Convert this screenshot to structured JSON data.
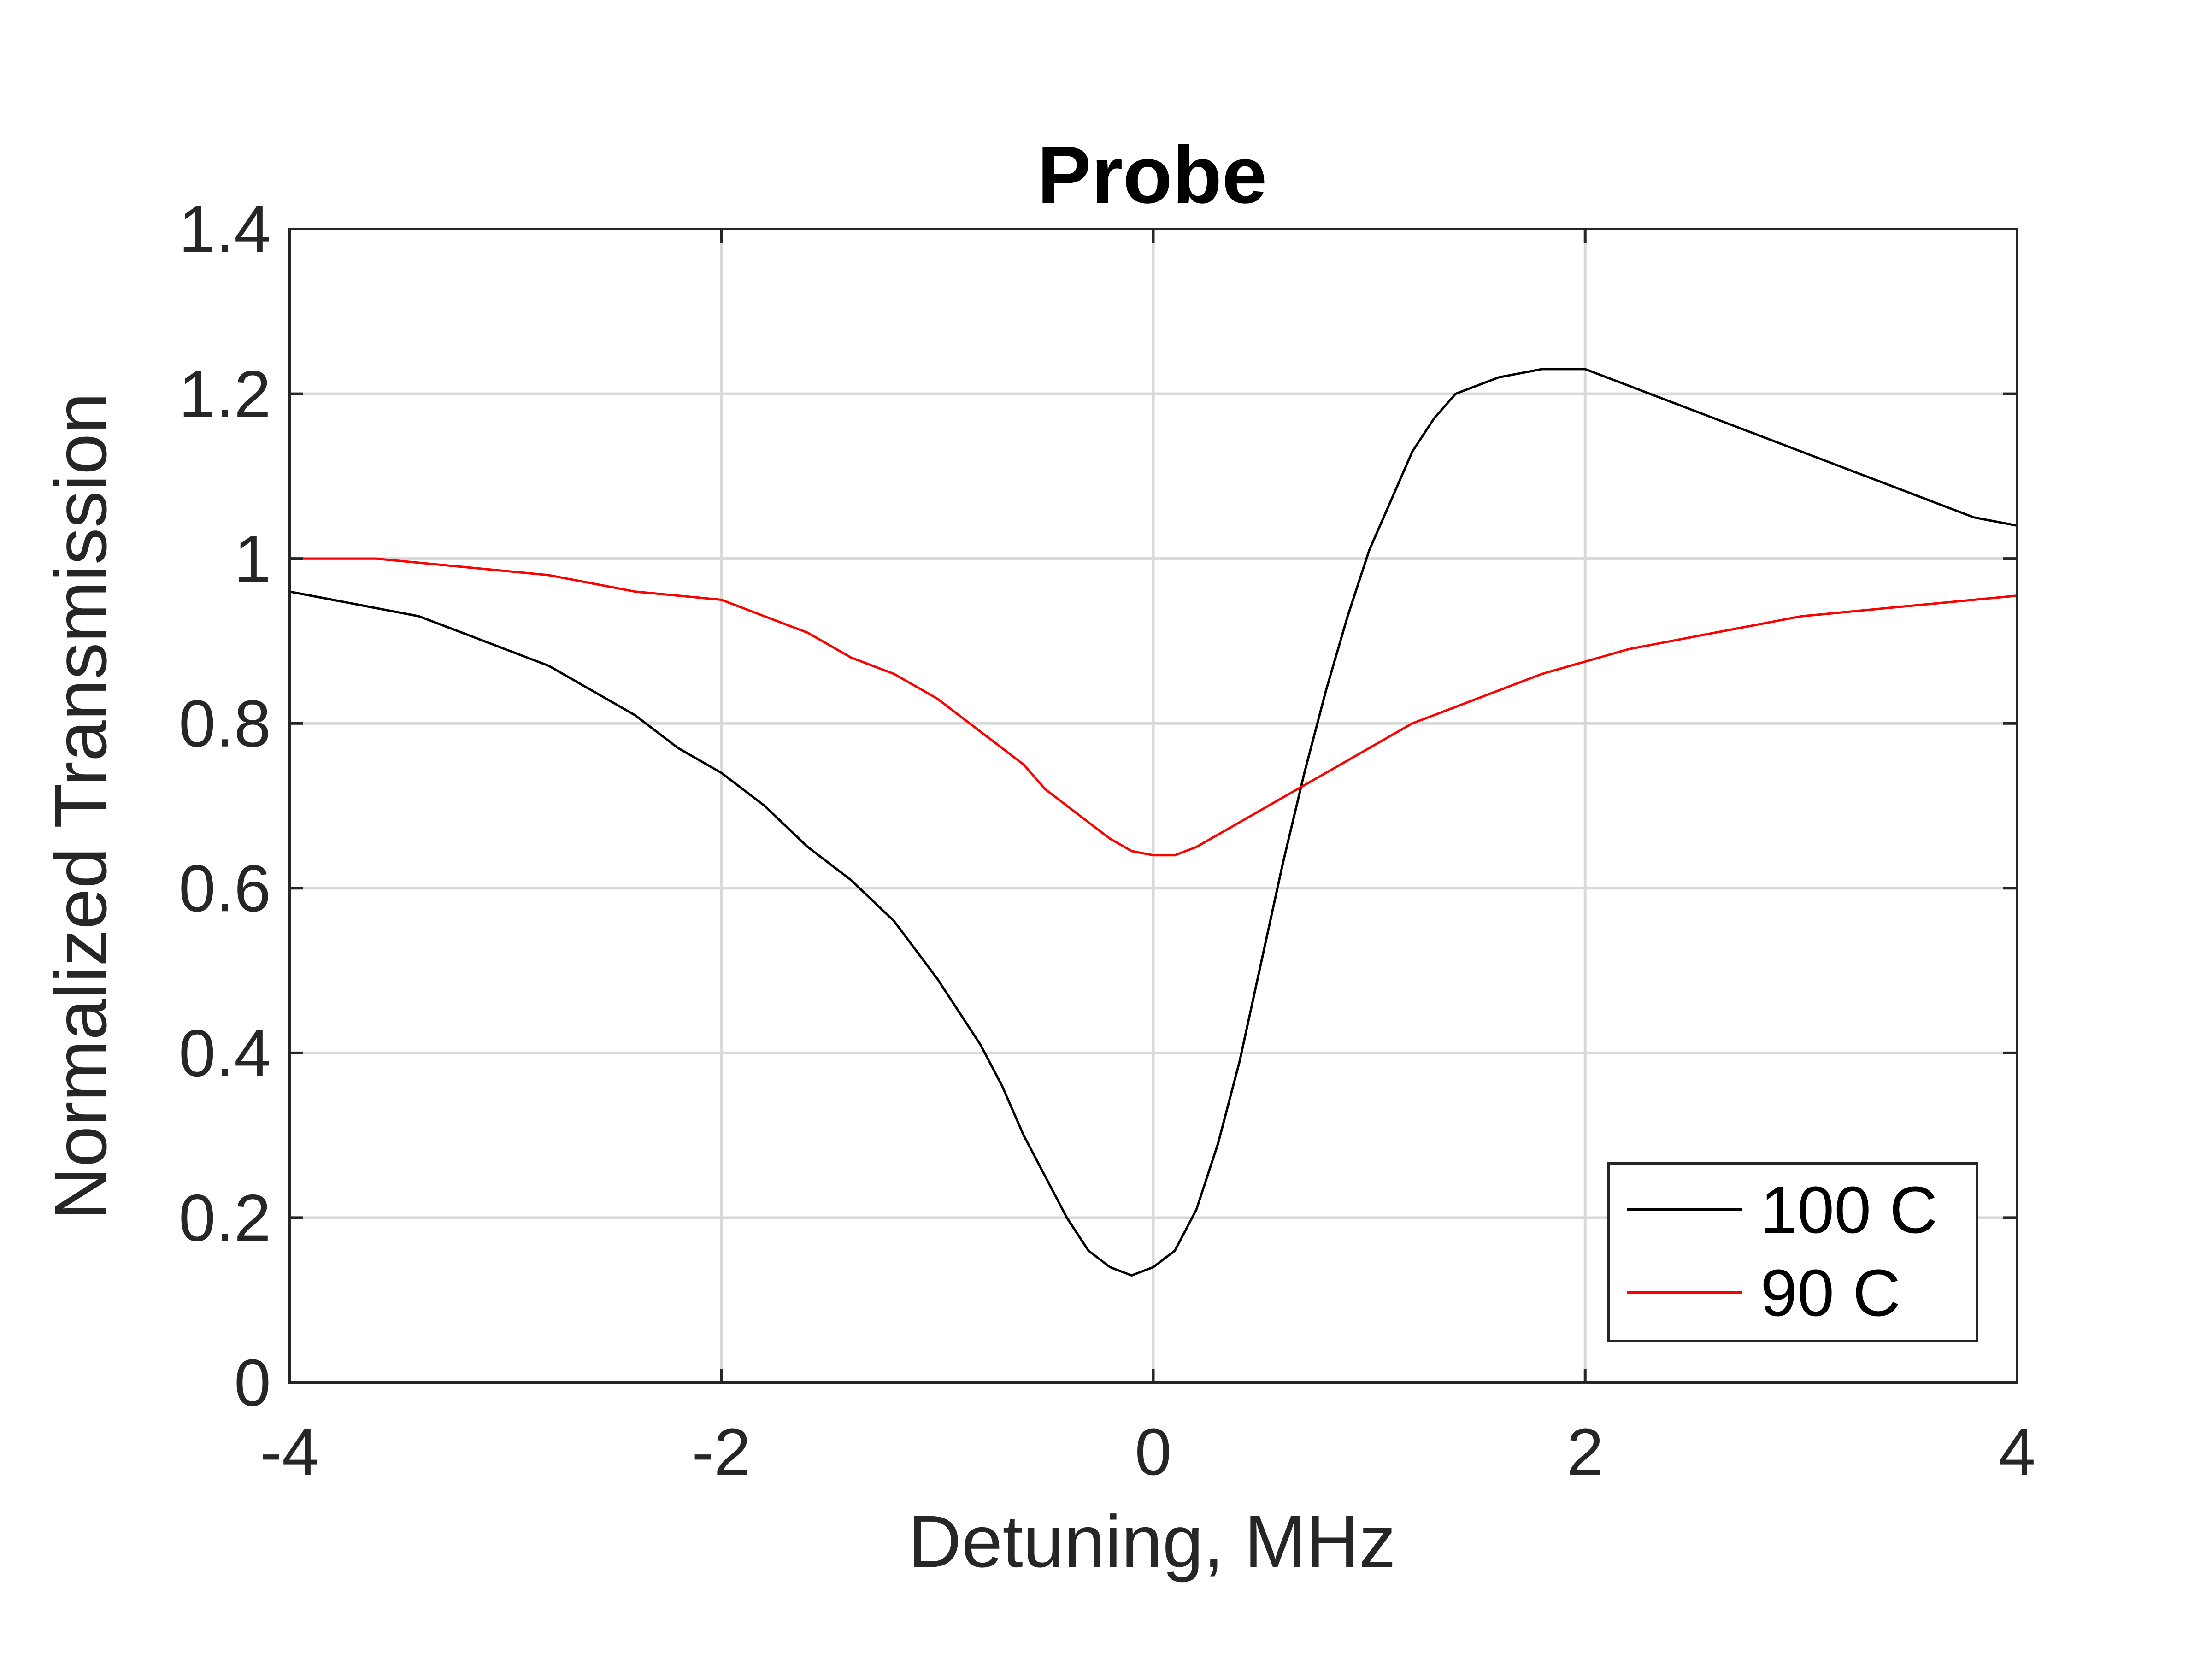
{
  "chart_data": {
    "type": "line",
    "title": "Probe",
    "xlabel": "Detuning, MHz",
    "ylabel": "Normalized Transmission",
    "xlim": [
      -4,
      4
    ],
    "ylim": [
      0,
      1.4
    ],
    "xticks": [
      -4,
      -2,
      0,
      2,
      4
    ],
    "xtick_labels": [
      "-4",
      "-2",
      "0",
      "2",
      "4"
    ],
    "yticks": [
      0,
      0.2,
      0.4,
      0.6,
      0.8,
      1.0,
      1.2,
      1.4
    ],
    "ytick_labels": [
      "0",
      "0.2",
      "0.4",
      "0.6",
      "0.8",
      "1",
      "1.2",
      "1.4"
    ],
    "grid": true,
    "legend_position": "bottom-right",
    "series": [
      {
        "name": "100 C",
        "color": "#000000",
        "x": [
          -4.0,
          -3.8,
          -3.6,
          -3.4,
          -3.2,
          -3.0,
          -2.8,
          -2.6,
          -2.4,
          -2.2,
          -2.0,
          -1.8,
          -1.6,
          -1.4,
          -1.2,
          -1.0,
          -0.8,
          -0.7,
          -0.6,
          -0.5,
          -0.4,
          -0.3,
          -0.2,
          -0.1,
          0.0,
          0.1,
          0.2,
          0.3,
          0.4,
          0.5,
          0.6,
          0.7,
          0.8,
          0.9,
          1.0,
          1.1,
          1.2,
          1.3,
          1.4,
          1.6,
          1.8,
          2.0,
          2.2,
          2.4,
          2.6,
          2.8,
          3.0,
          3.2,
          3.4,
          3.6,
          3.8,
          4.0
        ],
        "y": [
          0.96,
          0.95,
          0.94,
          0.93,
          0.91,
          0.89,
          0.87,
          0.84,
          0.81,
          0.77,
          0.74,
          0.7,
          0.65,
          0.61,
          0.56,
          0.49,
          0.41,
          0.36,
          0.3,
          0.25,
          0.2,
          0.16,
          0.14,
          0.13,
          0.14,
          0.16,
          0.21,
          0.29,
          0.39,
          0.51,
          0.63,
          0.74,
          0.84,
          0.93,
          1.01,
          1.07,
          1.13,
          1.17,
          1.2,
          1.22,
          1.23,
          1.23,
          1.21,
          1.19,
          1.17,
          1.15,
          1.13,
          1.11,
          1.09,
          1.07,
          1.05,
          1.04
        ]
      },
      {
        "name": "90 C",
        "color": "#ff0000",
        "x": [
          -4.0,
          -3.6,
          -3.2,
          -2.8,
          -2.4,
          -2.0,
          -1.8,
          -1.6,
          -1.4,
          -1.2,
          -1.0,
          -0.8,
          -0.6,
          -0.5,
          -0.4,
          -0.3,
          -0.2,
          -0.1,
          0.0,
          0.1,
          0.2,
          0.3,
          0.4,
          0.5,
          0.6,
          0.8,
          1.0,
          1.2,
          1.4,
          1.6,
          1.8,
          2.0,
          2.2,
          2.4,
          2.6,
          2.8,
          3.0,
          3.2,
          3.4,
          3.6,
          3.8,
          4.0
        ],
        "y": [
          1.0,
          1.0,
          0.99,
          0.98,
          0.96,
          0.95,
          0.93,
          0.91,
          0.88,
          0.86,
          0.83,
          0.79,
          0.75,
          0.72,
          0.7,
          0.68,
          0.66,
          0.645,
          0.64,
          0.64,
          0.65,
          0.665,
          0.68,
          0.695,
          0.71,
          0.74,
          0.77,
          0.8,
          0.82,
          0.84,
          0.86,
          0.875,
          0.89,
          0.9,
          0.91,
          0.92,
          0.93,
          0.935,
          0.94,
          0.945,
          0.95,
          0.955
        ]
      }
    ]
  }
}
